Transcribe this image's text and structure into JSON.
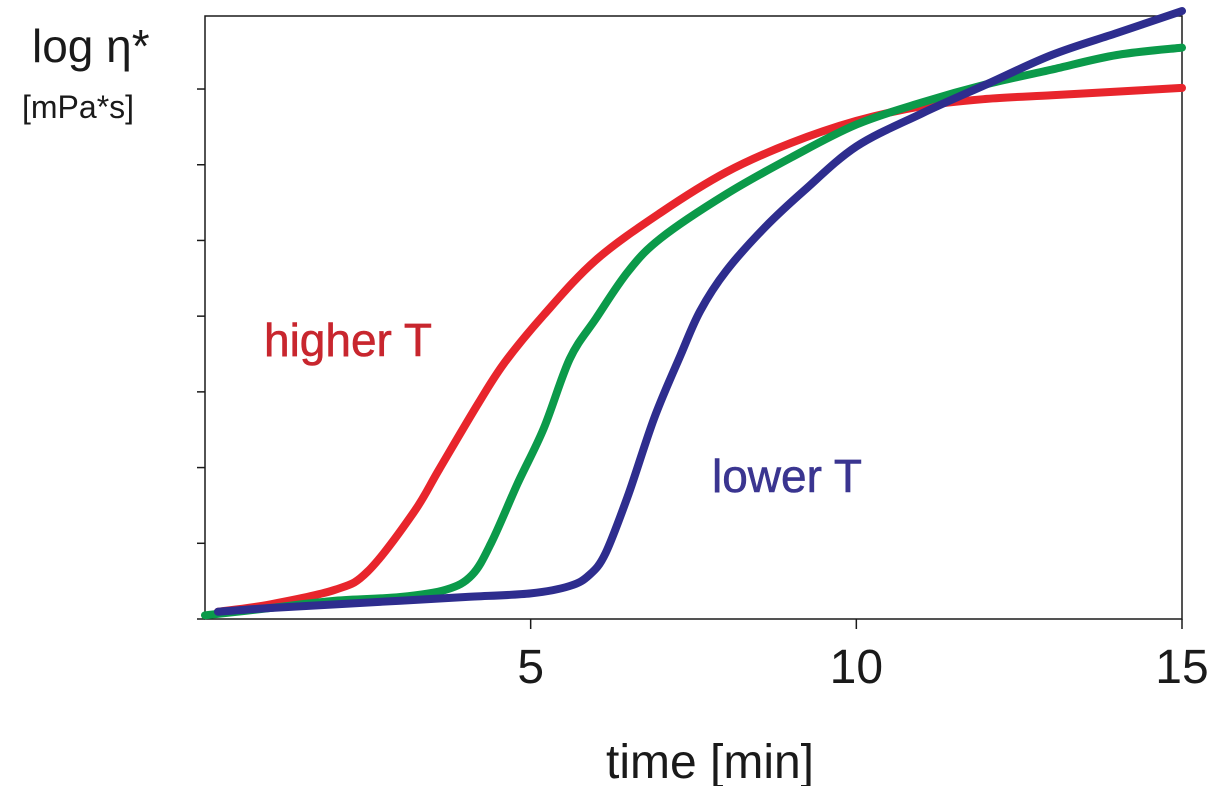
{
  "chart_data": {
    "type": "line",
    "ylabel": "log η*",
    "ylabel_unit": "[mPa*s]",
    "xlabel": "time [min]",
    "xlim": [
      0,
      15
    ],
    "x_ticks": [
      5,
      10,
      15
    ],
    "y_tick_count": 9,
    "y_tick_labels_shown": false,
    "ylim": [
      0,
      8
    ],
    "grid": false,
    "legend": "none",
    "annotations": [
      {
        "text": "higher T",
        "color": "#c8262e",
        "near_series": "red"
      },
      {
        "text": "lower T",
        "color": "#3a3590",
        "near_series": "blue"
      }
    ],
    "series": [
      {
        "color": "#e8252c",
        "x": [
          0.2,
          1.0,
          2.0,
          2.5,
          3.2,
          3.6,
          4.2,
          4.6,
          5.2,
          6.0,
          7.0,
          8.0,
          9.0,
          10.0,
          11.0,
          12.0,
          13.0,
          14.0,
          15.0
        ],
        "y": [
          0.1,
          0.2,
          0.4,
          0.65,
          1.45,
          2.05,
          2.95,
          3.5,
          4.15,
          4.9,
          5.55,
          6.1,
          6.5,
          6.8,
          7.0,
          7.1,
          7.15,
          7.2,
          7.25
        ]
      },
      {
        "color": "#0b9a4a",
        "x": [
          0.0,
          1.0,
          2.0,
          3.0,
          3.7,
          4.1,
          4.4,
          4.8,
          5.2,
          5.6,
          6.0,
          6.5,
          7.0,
          8.0,
          9.0,
          10.0,
          11.0,
          12.0,
          13.0,
          14.0,
          15.0
        ],
        "y": [
          0.05,
          0.15,
          0.25,
          0.3,
          0.4,
          0.6,
          1.05,
          1.85,
          2.6,
          3.55,
          4.1,
          4.75,
          5.2,
          5.8,
          6.3,
          6.75,
          7.05,
          7.3,
          7.5,
          7.7,
          7.8
        ]
      },
      {
        "color": "#2e2d8e",
        "x": [
          0.2,
          1.0,
          2.0,
          3.0,
          4.0,
          5.0,
          5.6,
          5.9,
          6.15,
          6.5,
          6.9,
          7.3,
          7.6,
          8.0,
          8.6,
          9.2,
          10.0,
          11.0,
          12.0,
          13.0,
          14.0,
          15.0
        ],
        "y": [
          0.1,
          0.15,
          0.2,
          0.25,
          0.3,
          0.35,
          0.45,
          0.6,
          0.9,
          1.7,
          2.75,
          3.6,
          4.2,
          4.75,
          5.35,
          5.85,
          6.45,
          6.9,
          7.3,
          7.7,
          8.0,
          8.3
        ]
      }
    ]
  }
}
